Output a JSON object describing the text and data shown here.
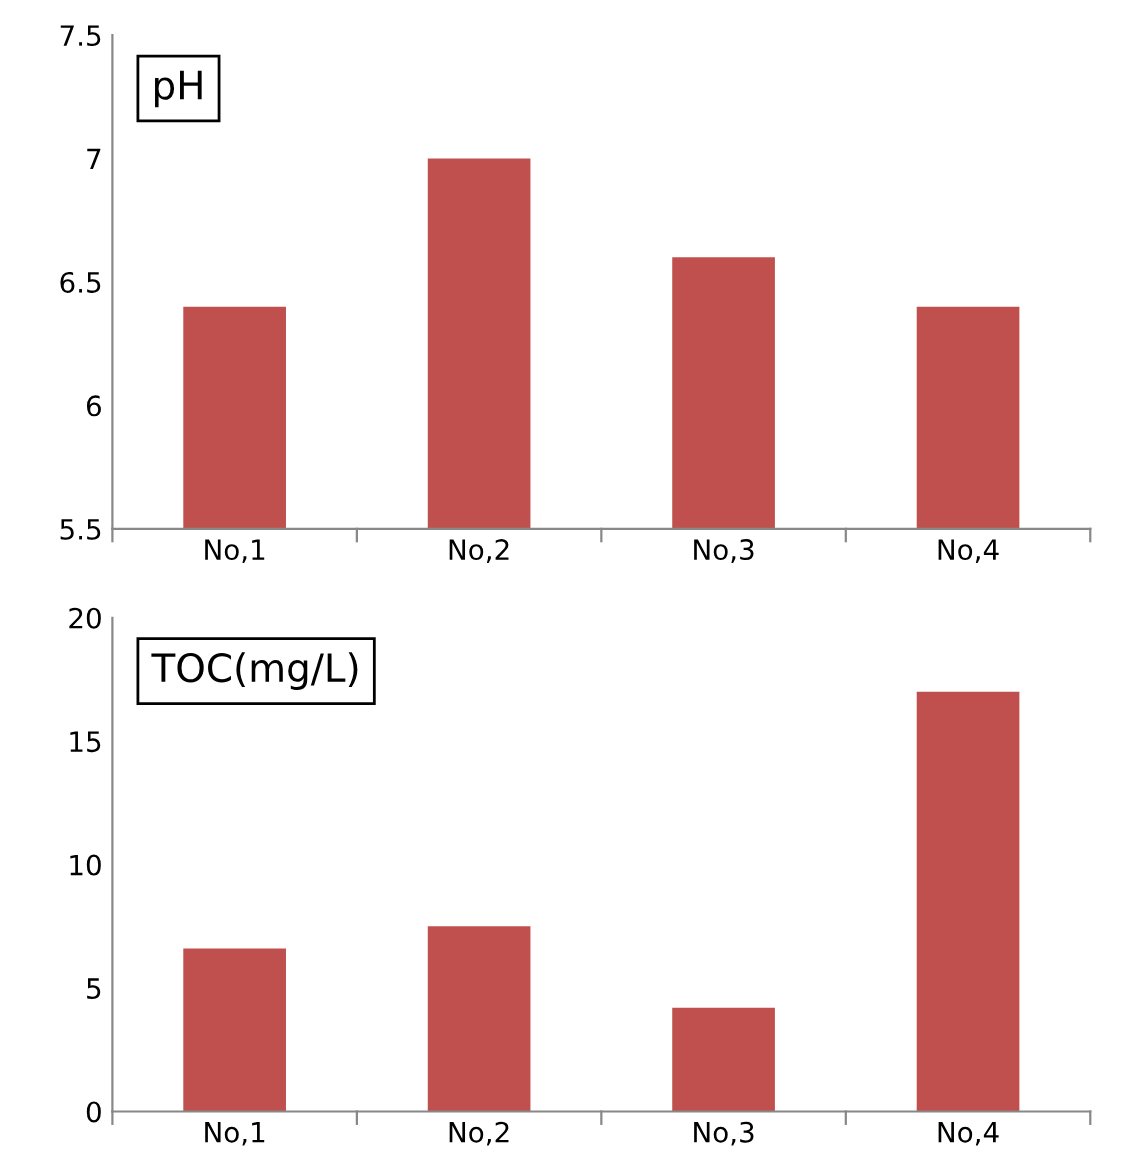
{
  "chart_data": [
    {
      "type": "bar",
      "title": "pH",
      "categories": [
        "No,1",
        "No,2",
        "No,3",
        "No,4"
      ],
      "values": [
        6.4,
        7.0,
        6.6,
        6.4
      ],
      "color": "#c0504d",
      "ylim": [
        5.5,
        7.5
      ],
      "yticks": [
        5.5,
        6,
        6.5,
        7,
        7.5
      ],
      "grid": false,
      "legend": false
    },
    {
      "type": "bar",
      "title": "TOC(mg/L)",
      "categories": [
        "No,1",
        "No,2",
        "No,3",
        "No,4"
      ],
      "values": [
        6.6,
        7.5,
        4.2,
        17
      ],
      "color": "#c0504d",
      "ylim": [
        0,
        20
      ],
      "yticks": [
        0,
        5,
        10,
        15,
        20
      ],
      "grid": false,
      "legend": false
    }
  ]
}
